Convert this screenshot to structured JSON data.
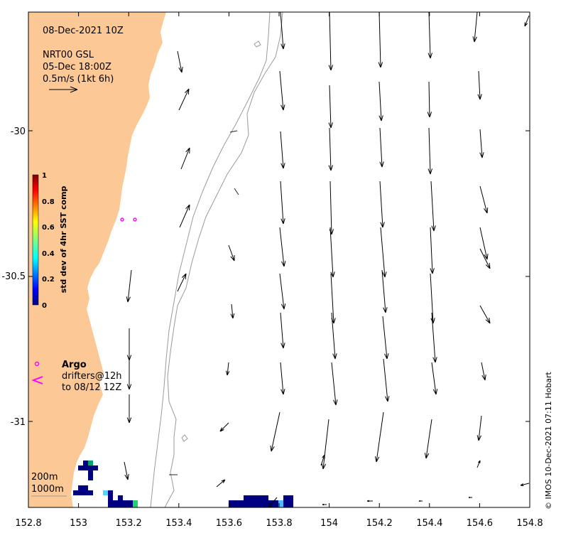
{
  "map": {
    "timestamp": "08-Dec-2021 10Z",
    "source": "NRT00 GSL",
    "source_time": "05-Dec 18:00Z",
    "scale_label": "0.5m/s (1kt 6h)",
    "x_ticks": [
      "152.8",
      "153",
      "153.2",
      "153.4",
      "153.6",
      "153.8",
      "154",
      "154.2",
      "154.4",
      "154.6",
      "154.8"
    ],
    "y_ticks": [
      "-30",
      "-30.5",
      "-31"
    ],
    "colorbar": {
      "title": "std dev of 4hr SST comp",
      "ticks": [
        "1",
        "0.8",
        "0.6",
        "0.4",
        "0.2",
        "0"
      ]
    },
    "legend": {
      "argo": "Argo",
      "drifters_line1": "drifters@12h",
      "drifters_line2": "to 08/12 12Z"
    },
    "isobaths": {
      "shallow": "200m",
      "deep": "1000m"
    },
    "credit": "© IMOS 10-Dec-2021 07:11 Hobart",
    "colors": {
      "land": "#fcc996",
      "sst_low": "#000080",
      "argo": "#ff00ff"
    }
  }
}
